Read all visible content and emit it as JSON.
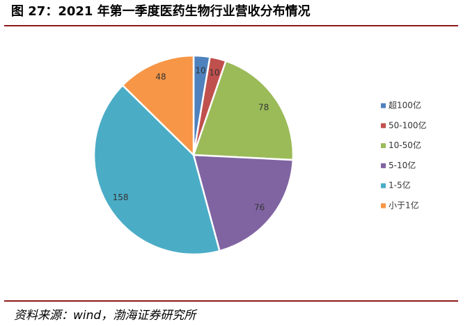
{
  "chart_data": {
    "type": "pie",
    "title": "图 27：2021 年第一季度医药生物行业营收分布情况",
    "source": "资料来源：wind，渤海证券研究所",
    "categories": [
      "超100亿",
      "50-100亿",
      "10-50亿",
      "5-10亿",
      "1-5亿",
      "小于1亿"
    ],
    "values": [
      10,
      10,
      78,
      76,
      158,
      48
    ],
    "colors": [
      "#4f81bd",
      "#c0504d",
      "#9bbb59",
      "#8064a2",
      "#4bacc6",
      "#f79646"
    ],
    "legend": "right"
  }
}
